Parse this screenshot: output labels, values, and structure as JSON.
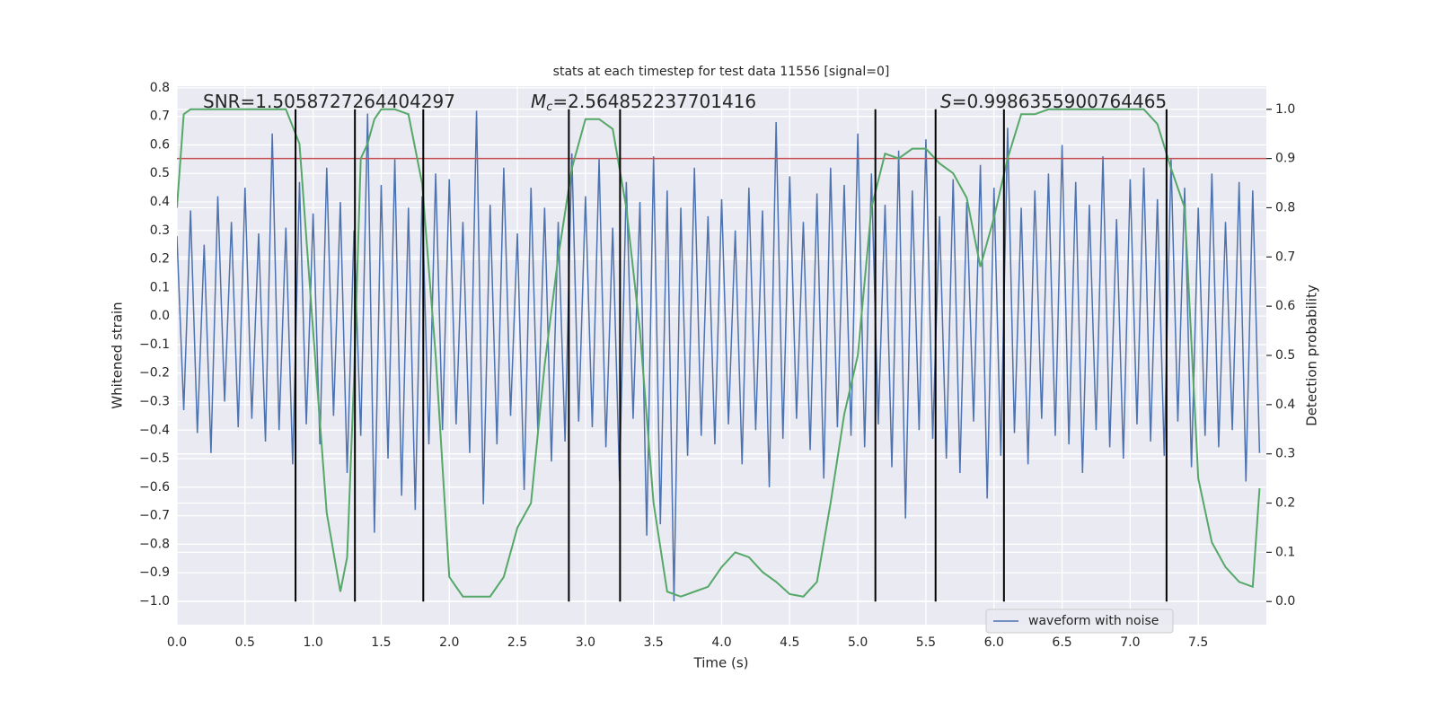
{
  "chart_data": {
    "type": "line",
    "title": "stats at each timestep for test data 11556 [signal=0]",
    "xlabel": "Time (s)",
    "ylabel": "Whitened strain",
    "y2label": "Detection probability",
    "annotations": [
      {
        "text": "SNR=1.5058727264404297"
      },
      {
        "symbol": "M",
        "subscript": "c",
        "text": "=2.564852237701416"
      },
      {
        "symbol": "S",
        "text": "=0.9986355900764465"
      }
    ],
    "xlim": [
      0,
      8.0
    ],
    "ylim": [
      -1.082,
      0.806
    ],
    "y2lim": [
      -0.047,
      1.047
    ],
    "xticks": [
      {
        "value": 0,
        "label": "0.0"
      },
      0.5,
      {
        "value": 1,
        "label": "1.0"
      },
      1.5,
      {
        "value": 2,
        "label": "2.0"
      },
      2.5,
      {
        "value": 3,
        "label": "3.0"
      },
      3.5,
      {
        "value": 4,
        "label": "4.0"
      },
      4.5,
      {
        "value": 5,
        "label": "5.0"
      },
      5.5,
      {
        "value": 6,
        "label": "6.0"
      },
      6.5,
      {
        "value": 7,
        "label": "7.0"
      },
      7.5
    ],
    "yticks": [
      {
        "value": -1,
        "label": "−1.0"
      },
      {
        "value": -0.9,
        "label": "−0.9"
      },
      {
        "value": -0.8,
        "label": "−0.8"
      },
      {
        "value": -0.7,
        "label": "−0.7"
      },
      {
        "value": -0.6,
        "label": "−0.6"
      },
      {
        "value": -0.5,
        "label": "−0.5"
      },
      {
        "value": -0.4,
        "label": "−0.4"
      },
      {
        "value": -0.3,
        "label": "−0.3"
      },
      {
        "value": -0.2,
        "label": "−0.2"
      },
      {
        "value": -0.1,
        "label": "−0.1"
      },
      {
        "value": 0,
        "label": "0.0"
      },
      0.1,
      0.2,
      0.3,
      0.4,
      0.5,
      0.6,
      0.7,
      0.8
    ],
    "y2ticks": [
      {
        "value": 0,
        "label": "0.0"
      },
      0.1,
      0.2,
      0.3,
      0.4,
      0.5,
      0.6,
      0.7,
      0.8,
      0.9,
      {
        "value": 1,
        "label": "1.0"
      }
    ],
    "grid": true,
    "legend": "lower right",
    "series": [
      {
        "name": "waveform with noise",
        "color": "#4c72b0",
        "x": [
          0,
          0.05,
          0.1,
          0.15,
          0.2,
          0.25,
          0.3,
          0.35,
          0.4,
          0.45,
          0.5,
          0.55,
          0.6,
          0.65,
          0.7,
          0.75,
          0.8,
          0.85,
          0.9,
          0.95,
          1,
          1.05,
          1.1,
          1.15,
          1.2,
          1.25,
          1.3,
          1.35,
          1.4,
          1.45,
          1.5,
          1.55,
          1.6,
          1.65,
          1.7,
          1.75,
          1.8,
          1.85,
          1.9,
          1.95,
          2,
          2.05,
          2.1,
          2.15,
          2.2,
          2.25,
          2.3,
          2.35,
          2.4,
          2.45,
          2.5,
          2.55,
          2.6,
          2.65,
          2.7,
          2.75,
          2.8,
          2.85,
          2.9,
          2.95,
          3,
          3.05,
          3.1,
          3.15,
          3.2,
          3.25,
          3.3,
          3.35,
          3.4,
          3.45,
          3.5,
          3.55,
          3.6,
          3.65,
          3.7,
          3.75,
          3.8,
          3.85,
          3.9,
          3.95,
          4,
          4.05,
          4.1,
          4.15,
          4.2,
          4.25,
          4.3,
          4.35,
          4.4,
          4.45,
          4.5,
          4.55,
          4.6,
          4.65,
          4.7,
          4.75,
          4.8,
          4.85,
          4.9,
          4.95,
          5,
          5.05,
          5.1,
          5.15,
          5.2,
          5.25,
          5.3,
          5.35,
          5.4,
          5.45,
          5.5,
          5.55,
          5.6,
          5.65,
          5.7,
          5.75,
          5.8,
          5.85,
          5.9,
          5.95,
          6,
          6.05,
          6.1,
          6.15,
          6.2,
          6.25,
          6.3,
          6.35,
          6.4,
          6.45,
          6.5,
          6.55,
          6.6,
          6.65,
          6.7,
          6.75,
          6.8,
          6.85,
          6.9,
          6.95,
          7,
          7.05,
          7.1,
          7.15,
          7.2,
          7.25,
          7.3,
          7.35,
          7.4,
          7.45,
          7.5,
          7.55,
          7.6,
          7.65,
          7.7,
          7.75,
          7.8,
          7.85,
          7.9,
          7.95
        ],
        "values": [
          0.28,
          -0.33,
          0.37,
          -0.41,
          0.25,
          -0.48,
          0.42,
          -0.3,
          0.33,
          -0.39,
          0.45,
          -0.36,
          0.29,
          -0.44,
          0.64,
          -0.4,
          0.31,
          -0.52,
          0.47,
          -0.38,
          0.36,
          -0.45,
          0.52,
          -0.35,
          0.4,
          -0.55,
          0.3,
          -0.42,
          0.71,
          -0.76,
          0.46,
          -0.5,
          0.55,
          -0.63,
          0.38,
          -0.68,
          0.42,
          -0.45,
          0.5,
          -0.4,
          0.48,
          -0.38,
          0.33,
          -0.48,
          0.72,
          -0.66,
          0.39,
          -0.45,
          0.52,
          -0.35,
          0.29,
          -0.61,
          0.45,
          -0.4,
          0.38,
          -0.51,
          0.33,
          -0.44,
          0.57,
          -0.37,
          0.42,
          -0.39,
          0.55,
          -0.46,
          0.31,
          -0.58,
          0.47,
          -0.36,
          0.4,
          -0.77,
          0.56,
          -0.73,
          0.44,
          -1.0,
          0.38,
          -0.49,
          0.52,
          -0.42,
          0.35,
          -0.45,
          0.41,
          -0.38,
          0.3,
          -0.52,
          0.45,
          -0.4,
          0.37,
          -0.6,
          0.68,
          -0.43,
          0.49,
          -0.36,
          0.33,
          -0.47,
          0.43,
          -0.57,
          0.52,
          -0.39,
          0.46,
          -0.42,
          0.64,
          -0.46,
          0.5,
          -0.38,
          0.39,
          -0.53,
          0.58,
          -0.71,
          0.44,
          -0.4,
          0.62,
          -0.43,
          0.35,
          -0.5,
          0.48,
          -0.55,
          0.4,
          -0.37,
          0.53,
          -0.64,
          0.45,
          -0.49,
          0.66,
          -0.41,
          0.38,
          -0.52,
          0.44,
          -0.36,
          0.5,
          -0.42,
          0.6,
          -0.45,
          0.47,
          -0.55,
          0.39,
          -0.4,
          0.56,
          -0.46,
          0.34,
          -0.5,
          0.48,
          -0.38,
          0.52,
          -0.44,
          0.41,
          -0.49,
          0.55,
          -0.37,
          0.45,
          -0.53,
          0.38,
          -0.42,
          0.5,
          -0.46,
          0.33,
          -0.4,
          0.47,
          -0.58,
          0.44,
          -0.48
        ]
      }
    ],
    "detection_probability": {
      "color": "#55a868",
      "axis": "y2",
      "x": [
        0,
        0.05,
        0.1,
        0.2,
        0.3,
        0.4,
        0.5,
        0.6,
        0.7,
        0.8,
        0.9,
        1,
        1.1,
        1.2,
        1.25,
        1.3,
        1.35,
        1.4,
        1.45,
        1.5,
        1.6,
        1.7,
        1.8,
        1.9,
        2,
        2.1,
        2.2,
        2.3,
        2.4,
        2.5,
        2.6,
        2.7,
        2.8,
        2.9,
        3,
        3.1,
        3.2,
        3.3,
        3.4,
        3.5,
        3.6,
        3.7,
        3.8,
        3.9,
        4,
        4.1,
        4.2,
        4.3,
        4.4,
        4.5,
        4.6,
        4.7,
        4.8,
        4.9,
        5,
        5.1,
        5.2,
        5.3,
        5.4,
        5.5,
        5.6,
        5.7,
        5.8,
        5.9,
        6,
        6.1,
        6.2,
        6.3,
        6.4,
        6.5,
        6.6,
        6.7,
        6.8,
        6.9,
        7,
        7.1,
        7.2,
        7.3,
        7.4,
        7.5,
        7.6,
        7.7,
        7.8,
        7.9,
        7.95
      ],
      "values": [
        0.8,
        0.99,
        1,
        1,
        1,
        1,
        1,
        1,
        1,
        1,
        0.93,
        0.55,
        0.18,
        0.02,
        0.09,
        0.45,
        0.9,
        0.93,
        0.98,
        1,
        1,
        0.99,
        0.85,
        0.5,
        0.05,
        0.01,
        0.01,
        0.01,
        0.05,
        0.15,
        0.2,
        0.48,
        0.7,
        0.88,
        0.98,
        0.98,
        0.96,
        0.8,
        0.55,
        0.2,
        0.02,
        0.01,
        0.02,
        0.03,
        0.07,
        0.1,
        0.09,
        0.06,
        0.04,
        0.015,
        0.01,
        0.04,
        0.2,
        0.38,
        0.5,
        0.8,
        0.91,
        0.9,
        0.92,
        0.92,
        0.89,
        0.87,
        0.82,
        0.68,
        0.78,
        0.9,
        0.99,
        0.99,
        1,
        1,
        1,
        1,
        1,
        1,
        1,
        1,
        0.97,
        0.88,
        0.8,
        0.25,
        0.12,
        0.07,
        0.04,
        0.03,
        0.23
      ]
    },
    "threshold": {
      "value": 0.9,
      "color": "#c44e52",
      "axis": "y2"
    },
    "markers": {
      "color": "#000000",
      "axis": "y2",
      "x": [
        0.871,
        1.307,
        1.809,
        2.878,
        3.254,
        5.129,
        5.571,
        6.073,
        7.267
      ],
      "ymin": 0,
      "ymax": 1
    }
  }
}
